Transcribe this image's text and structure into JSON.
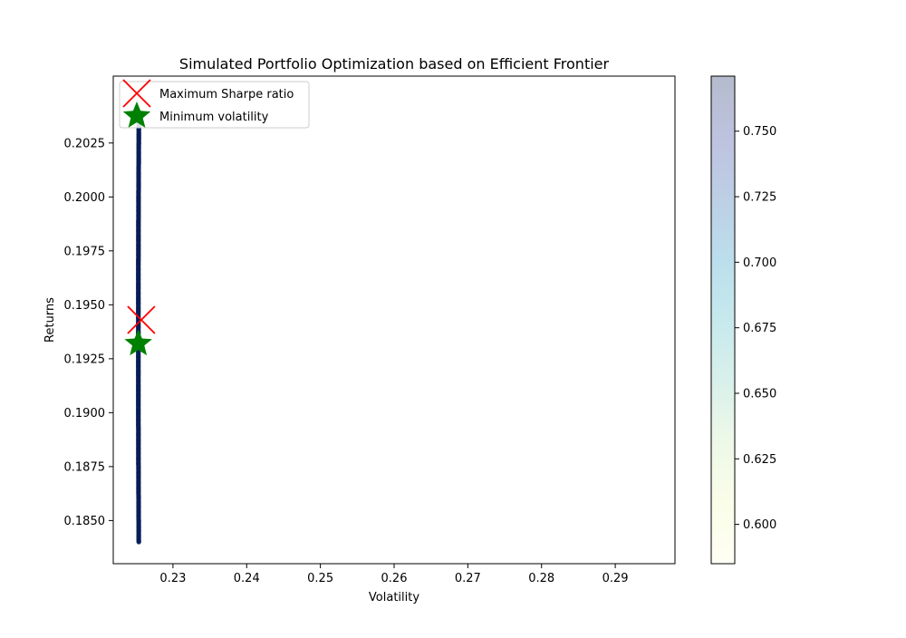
{
  "chart_data": {
    "type": "scatter",
    "title": "Simulated Portfolio Optimization based on Efficient Frontier",
    "xlabel": "Volatility",
    "ylabel": "Returns",
    "xlim": [
      0.2219,
      0.2981
    ],
    "ylim": [
      0.183,
      0.2056
    ],
    "xticks": [
      0.23,
      0.24,
      0.25,
      0.26,
      0.27,
      0.28,
      0.29
    ],
    "xtick_labels": [
      "0.23",
      "0.24",
      "0.25",
      "0.26",
      "0.27",
      "0.28",
      "0.29"
    ],
    "yticks": [
      0.185,
      0.1875,
      0.19,
      0.1925,
      0.195,
      0.1975,
      0.2,
      0.2025
    ],
    "ytick_labels": [
      "0.1850",
      "0.1875",
      "0.1900",
      "0.1925",
      "0.1950",
      "0.1975",
      "0.2000",
      "0.2025"
    ],
    "frontier": {
      "min_vol_return": 0.19325,
      "min_vol_volatility": 0.2253,
      "curvature": 300,
      "return_range": [
        0.184,
        0.204
      ],
      "point_count": 700,
      "color_metric": "sharpe"
    },
    "colorbar": {
      "range": [
        0.585,
        0.771
      ],
      "ticks": [
        0.6,
        0.625,
        0.65,
        0.675,
        0.7,
        0.725,
        0.75
      ],
      "tick_labels": [
        "0.600",
        "0.625",
        "0.650",
        "0.675",
        "0.700",
        "0.725",
        "0.750"
      ],
      "colormap": "YlGnBu"
    },
    "markers": [
      {
        "name": "Maximum Sharpe ratio",
        "volatility": 0.2257,
        "return": 0.1943,
        "symbol": "x",
        "color": "#ff0000"
      },
      {
        "name": "Minimum volatility",
        "volatility": 0.2253,
        "return": 0.1932,
        "symbol": "star",
        "color": "#008000"
      }
    ],
    "legend": {
      "placement": "upper-left",
      "entries": [
        "Maximum Sharpe ratio",
        "Minimum volatility"
      ]
    },
    "grid": false
  }
}
